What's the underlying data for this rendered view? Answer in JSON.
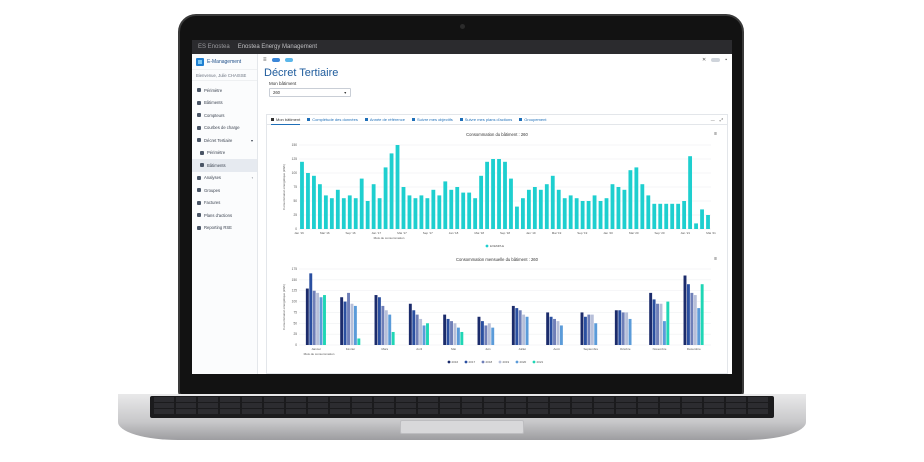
{
  "browser": {
    "title": "Enostea Energy Management",
    "tab": "ES Enostea"
  },
  "sidebar": {
    "logo": "E-Management",
    "user": "Bienvenue, Julie CHAISSE",
    "items": [
      {
        "label": "Périmètre",
        "icon": "perimeter-icon",
        "sub": false,
        "active": false
      },
      {
        "label": "Bâtiments",
        "icon": "building-icon",
        "sub": false,
        "active": false
      },
      {
        "label": "Compteurs",
        "icon": "meter-icon",
        "sub": false,
        "active": false
      },
      {
        "label": "Courbes de charge",
        "icon": "curve-icon",
        "sub": false,
        "active": false
      },
      {
        "label": "Décret Tertiaire",
        "icon": "decree-icon",
        "sub": false,
        "active": false,
        "chevron": "▾"
      },
      {
        "label": "Périmètre",
        "icon": "perimeter-icon",
        "sub": true,
        "active": false
      },
      {
        "label": "Bâtiments",
        "icon": "building-icon",
        "sub": true,
        "active": true
      },
      {
        "label": "Analyses",
        "icon": "analysis-icon",
        "sub": false,
        "active": false,
        "chevron": "‹"
      },
      {
        "label": "Groupes",
        "icon": "group-icon",
        "sub": false,
        "active": false
      },
      {
        "label": "Factures",
        "icon": "invoice-icon",
        "sub": false,
        "active": false
      },
      {
        "label": "Plans d'actions",
        "icon": "plan-icon",
        "sub": false,
        "active": false
      },
      {
        "label": "Reporting RSE",
        "icon": "report-icon",
        "sub": false,
        "active": false
      }
    ]
  },
  "header": {
    "title": "Décret Tertiaire",
    "building_label": "Mon bâtiment",
    "building_value": "260"
  },
  "tabs": [
    {
      "label": "Mon bâtiment",
      "active": true
    },
    {
      "label": "Complétude des données",
      "active": false
    },
    {
      "label": "Année de référence",
      "active": false
    },
    {
      "label": "Suivre mes objectifs",
      "active": false
    },
    {
      "label": "Suivre mes plans d'actions",
      "active": false
    },
    {
      "label": "Groupement",
      "active": false
    }
  ],
  "colors": {
    "accent": "#1f6fb8",
    "teal": "#1ecfcf"
  },
  "chart_data": [
    {
      "type": "bar",
      "title": "Consommation du bâtiment : 260",
      "xlabel": "Mois de consommation",
      "ylabel": "Consommation énergétique (kWh)",
      "ylim": [
        0,
        150
      ],
      "yticks": [
        0,
        25,
        50,
        75,
        100,
        125,
        150
      ],
      "xticks": [
        "Jan '16",
        "Mai '16",
        "Sep '16",
        "Jan '17",
        "Mai '17",
        "Sep '17",
        "Jan '18",
        "Mai '18",
        "Sep '18",
        "Jan '19",
        "Mai '19",
        "Sep '19",
        "Jan '20",
        "Mai '20",
        "Sep '20",
        "Jan '21",
        "Mai '21"
      ],
      "series": [
        {
          "name": "EXEMPLE",
          "color": "#1ecfcf",
          "values": [
            120,
            100,
            95,
            80,
            60,
            55,
            70,
            55,
            60,
            55,
            90,
            50,
            80,
            55,
            110,
            135,
            150,
            75,
            60,
            55,
            60,
            55,
            70,
            60,
            85,
            70,
            75,
            65,
            65,
            55,
            95,
            120,
            125,
            125,
            120,
            90,
            40,
            55,
            70,
            75,
            70,
            80,
            95,
            70,
            55,
            60,
            55,
            50,
            50,
            60,
            50,
            55,
            80,
            75,
            70,
            105,
            110,
            80,
            60,
            45,
            45,
            45,
            45,
            45,
            50,
            130,
            10,
            35,
            25
          ]
        }
      ]
    },
    {
      "type": "bar",
      "title": "Consommation mensuelle du bâtiment : 260",
      "xlabel": "Mois de consommation",
      "ylabel": "Consommation énergétique (kWh)",
      "ylim": [
        0,
        175
      ],
      "yticks": [
        0,
        25,
        50,
        75,
        100,
        125,
        150,
        175
      ],
      "categories": [
        "Janvier",
        "Février",
        "Mars",
        "Avril",
        "Mai",
        "Juin",
        "Juillet",
        "Août",
        "Septembre",
        "Octobre",
        "Novembre",
        "Décembre"
      ],
      "series": [
        {
          "name": "2016",
          "color": "#1b2b6b",
          "values": [
            130,
            110,
            115,
            95,
            70,
            65,
            90,
            75,
            75,
            80,
            120,
            160
          ]
        },
        {
          "name": "2017",
          "color": "#2a4fa0",
          "values": [
            165,
            100,
            110,
            80,
            60,
            55,
            85,
            65,
            65,
            80,
            105,
            140
          ]
        },
        {
          "name": "2018",
          "color": "#6f7fb8",
          "values": [
            125,
            120,
            90,
            70,
            55,
            45,
            80,
            60,
            70,
            75,
            95,
            120
          ]
        },
        {
          "name": "2019",
          "color": "#b7bfd9",
          "values": [
            120,
            95,
            80,
            60,
            50,
            50,
            70,
            55,
            70,
            75,
            95,
            115
          ]
        },
        {
          "name": "2020",
          "color": "#5b9bd9",
          "values": [
            110,
            90,
            70,
            45,
            40,
            40,
            65,
            45,
            50,
            60,
            55,
            85
          ]
        },
        {
          "name": "2021",
          "color": "#1fd6b5",
          "values": [
            115,
            15,
            30,
            50,
            30,
            0,
            0,
            0,
            0,
            0,
            100,
            140
          ]
        }
      ]
    }
  ]
}
